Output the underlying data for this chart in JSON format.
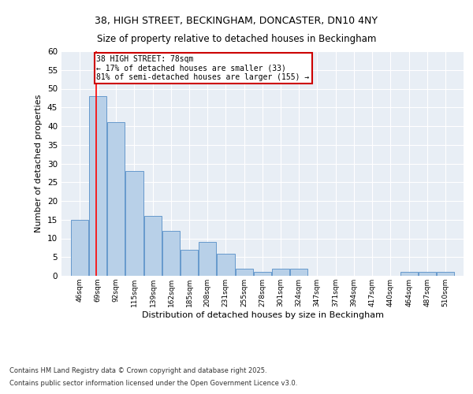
{
  "title_line1": "38, HIGH STREET, BECKINGHAM, DONCASTER, DN10 4NY",
  "title_line2": "Size of property relative to detached houses in Beckingham",
  "xlabel": "Distribution of detached houses by size in Beckingham",
  "ylabel": "Number of detached properties",
  "bin_labels": [
    "46sqm",
    "69sqm",
    "92sqm",
    "115sqm",
    "139sqm",
    "162sqm",
    "185sqm",
    "208sqm",
    "231sqm",
    "255sqm",
    "278sqm",
    "301sqm",
    "324sqm",
    "347sqm",
    "371sqm",
    "394sqm",
    "417sqm",
    "440sqm",
    "464sqm",
    "487sqm",
    "510sqm"
  ],
  "bin_edges": [
    46,
    69,
    92,
    115,
    139,
    162,
    185,
    208,
    231,
    255,
    278,
    301,
    324,
    347,
    371,
    394,
    417,
    440,
    464,
    487,
    510
  ],
  "counts": [
    15,
    48,
    41,
    28,
    16,
    12,
    7,
    9,
    6,
    2,
    1,
    2,
    2,
    0,
    0,
    0,
    0,
    0,
    1,
    1,
    1
  ],
  "bar_color": "#b8d0e8",
  "bar_edge_color": "#6699cc",
  "red_line_x": 78,
  "annotation_title": "38 HIGH STREET: 78sqm",
  "annotation_line1": "← 17% of detached houses are smaller (33)",
  "annotation_line2": "81% of semi-detached houses are larger (155) →",
  "annotation_box_color": "#ffffff",
  "annotation_border_color": "#cc0000",
  "ylim": [
    0,
    60
  ],
  "yticks": [
    0,
    5,
    10,
    15,
    20,
    25,
    30,
    35,
    40,
    45,
    50,
    55,
    60
  ],
  "background_color": "#e8eef5",
  "grid_color": "#ffffff",
  "footer_line1": "Contains HM Land Registry data © Crown copyright and database right 2025.",
  "footer_line2": "Contains public sector information licensed under the Open Government Licence v3.0."
}
